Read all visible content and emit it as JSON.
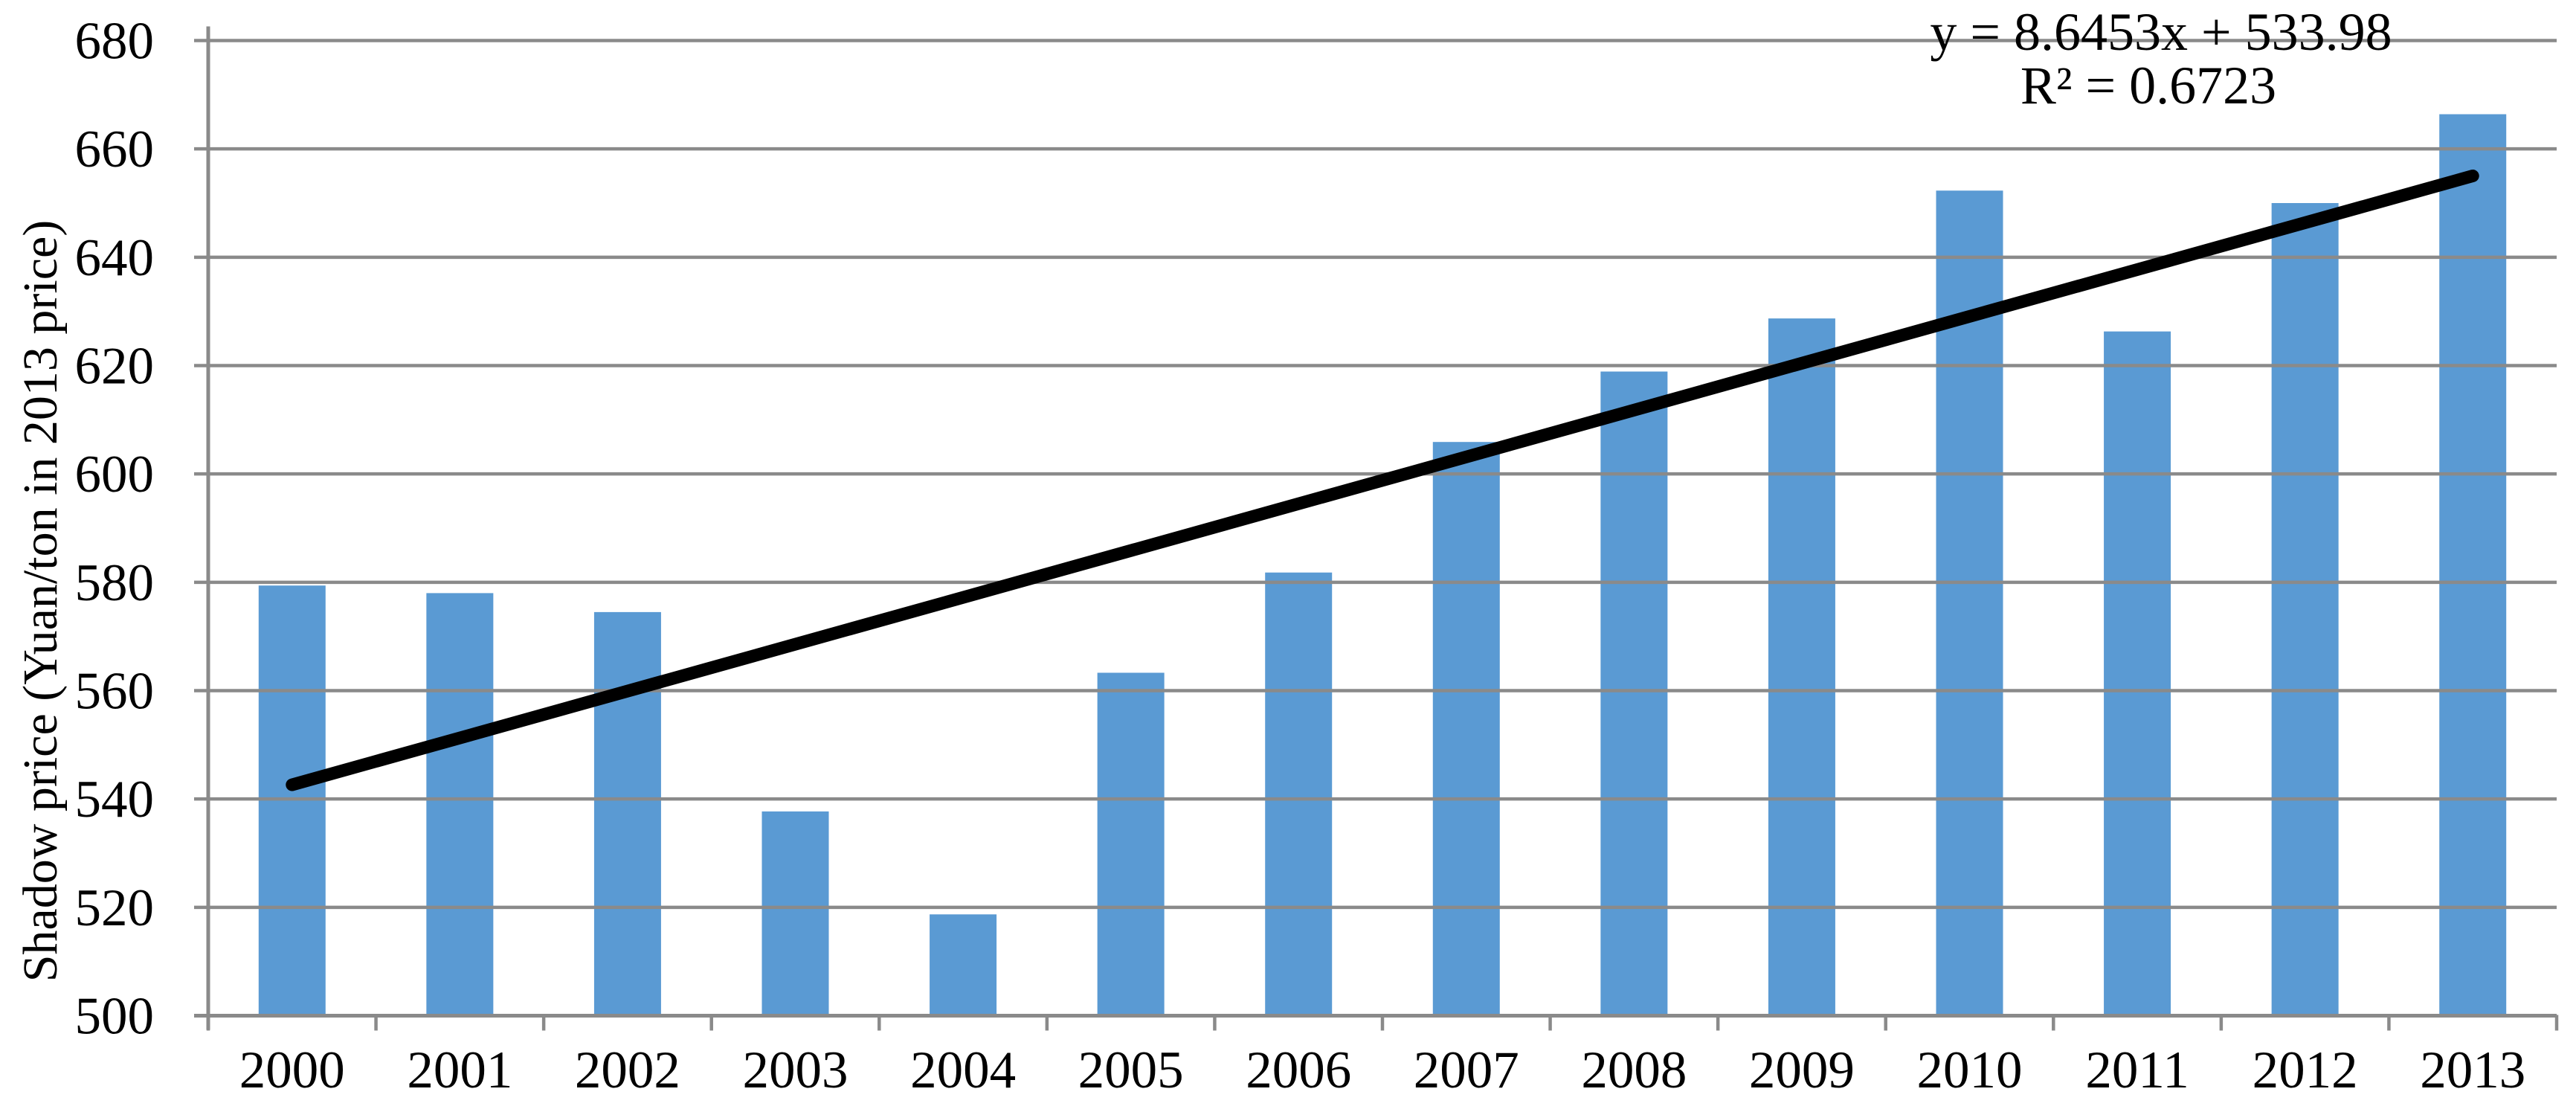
{
  "chart_data": {
    "type": "bar",
    "title": "",
    "xlabel": "",
    "ylabel": "Shadow price (Yuan/ton in 2013 price)",
    "categories": [
      "2000",
      "2001",
      "2002",
      "2003",
      "2004",
      "2005",
      "2006",
      "2007",
      "2008",
      "2009",
      "2010",
      "2011",
      "2012",
      "2013"
    ],
    "values": [
      579.4,
      578.0,
      574.5,
      537.7,
      518.7,
      563.3,
      581.8,
      605.9,
      618.9,
      628.7,
      652.3,
      626.3,
      650.0,
      666.4
    ],
    "ylim": [
      500,
      680
    ],
    "ytick_step": 20,
    "yticks": [
      500,
      520,
      540,
      560,
      580,
      600,
      620,
      640,
      660,
      680
    ],
    "grid": true,
    "legend": "none",
    "series_name": "Shadow price",
    "bar_color": "#5A9AD3",
    "grid_color": "#8A8A8A",
    "axis_color": "#8A8A8A",
    "trendline": {
      "type": "linear",
      "slope": 8.6453,
      "intercept": 533.98,
      "equation_label": "y = 8.6453x + 533.98",
      "r_squared_label": "R² = 0.6723",
      "r_squared": 0.6723,
      "color": "#000000"
    }
  }
}
